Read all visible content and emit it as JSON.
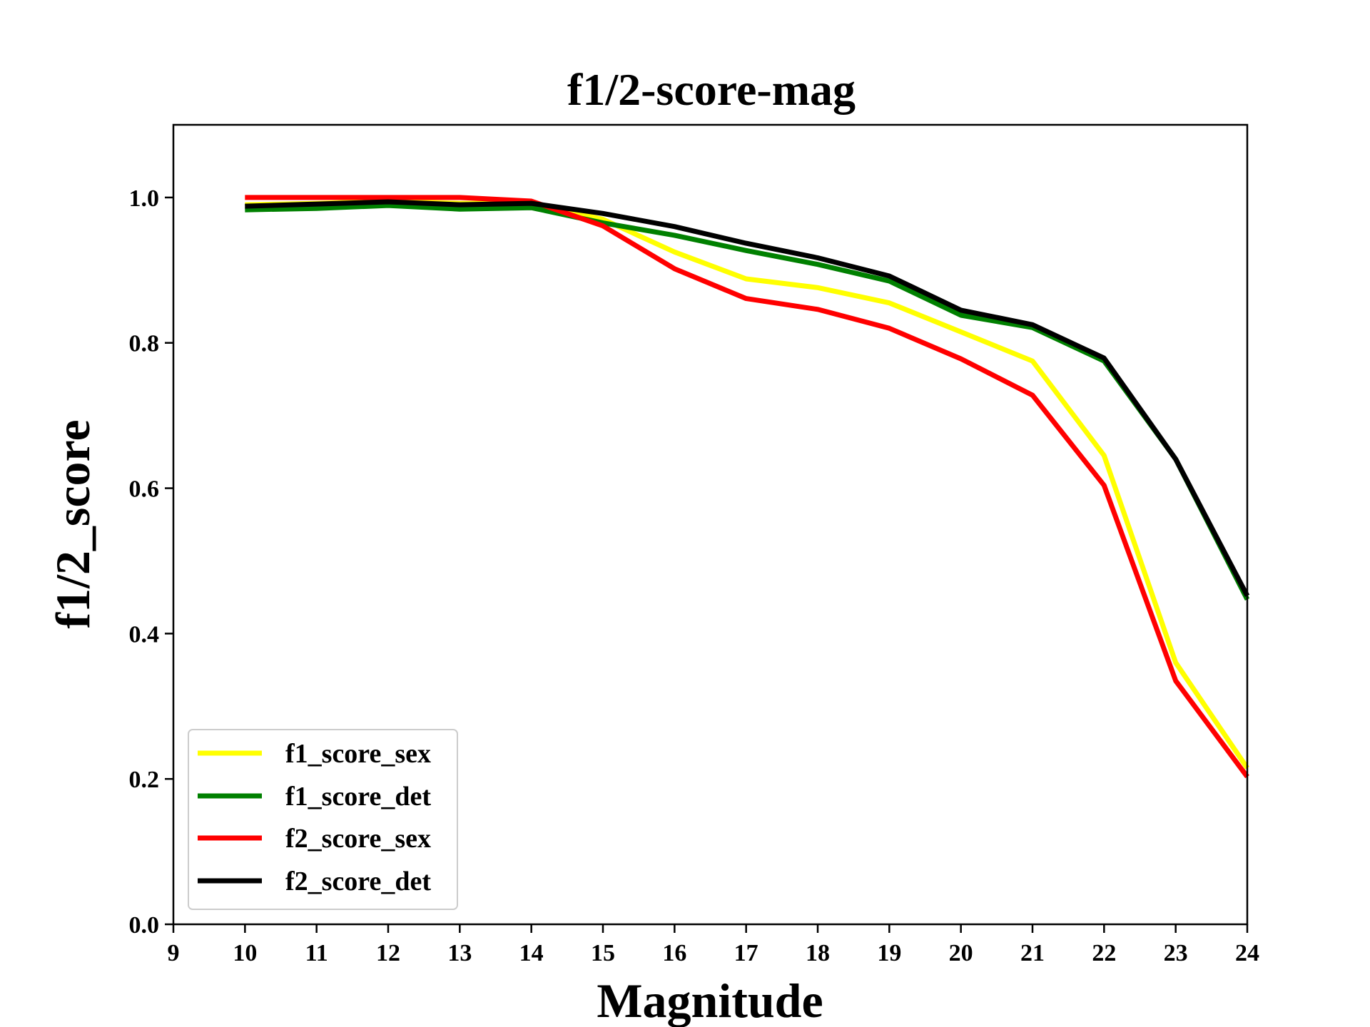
{
  "chart_data": {
    "type": "line",
    "title": "f1/2-score-mag",
    "xlabel": "Magnitude",
    "ylabel": "f1/2_score",
    "xlim": [
      9,
      24
    ],
    "ylim": [
      0.0,
      1.1
    ],
    "xticks": [
      "9",
      "10",
      "11",
      "12",
      "13",
      "14",
      "15",
      "16",
      "17",
      "18",
      "19",
      "20",
      "21",
      "22",
      "23",
      "24"
    ],
    "yticks": [
      "0.0",
      "0.2",
      "0.4",
      "0.6",
      "0.8",
      "1.0"
    ],
    "grid": false,
    "legend_position": "lower-left",
    "x": [
      10,
      11,
      12,
      13,
      14,
      15,
      16,
      17,
      18,
      19,
      20,
      21,
      22,
      23,
      24
    ],
    "series": [
      {
        "name": "f1_score_sex",
        "color": "#ffff00",
        "values": [
          0.99,
          0.992,
          0.995,
          0.992,
          0.992,
          0.97,
          0.925,
          0.888,
          0.876,
          0.855,
          0.815,
          0.775,
          0.645,
          0.36,
          0.215
        ]
      },
      {
        "name": "f1_score_det",
        "color": "#008000",
        "values": [
          0.983,
          0.985,
          0.989,
          0.984,
          0.986,
          0.965,
          0.948,
          0.927,
          0.908,
          0.885,
          0.838,
          0.821,
          0.775,
          0.64,
          0.447
        ]
      },
      {
        "name": "f2_score_sex",
        "color": "#ff0000",
        "values": [
          1.0,
          1.0,
          1.0,
          1.0,
          0.995,
          0.961,
          0.902,
          0.861,
          0.846,
          0.82,
          0.778,
          0.728,
          0.604,
          0.335,
          0.203
        ]
      },
      {
        "name": "f2_score_det",
        "color": "#000000",
        "values": [
          0.988,
          0.991,
          0.994,
          0.99,
          0.992,
          0.978,
          0.96,
          0.937,
          0.917,
          0.892,
          0.845,
          0.825,
          0.779,
          0.64,
          0.452
        ]
      }
    ]
  }
}
